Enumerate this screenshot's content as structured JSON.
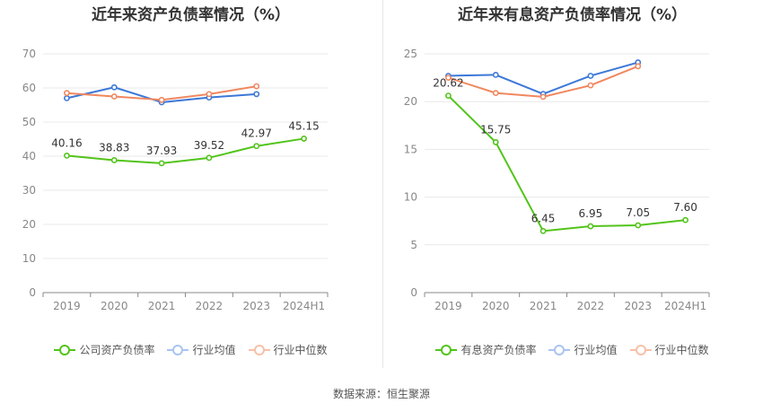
{
  "source_text": "数据来源：恒生聚源",
  "chart_data": [
    {
      "type": "line",
      "title": "近年来资产负债率情况（%）",
      "categories": [
        "2019",
        "2020",
        "2021",
        "2022",
        "2023",
        "2024H1"
      ],
      "ylim": [
        0,
        70
      ],
      "yticks": [
        0,
        10,
        20,
        30,
        40,
        50,
        60,
        70
      ],
      "grid": true,
      "legend_position": "bottom",
      "series": [
        {
          "name": "公司资产负债率",
          "color": "#52c41a",
          "values": [
            40.16,
            38.83,
            37.93,
            39.52,
            42.97,
            45.15
          ],
          "labels": [
            "40.16",
            "38.83",
            "37.93",
            "39.52",
            "42.97",
            "45.15"
          ]
        },
        {
          "name": "行业均值",
          "color": "#3c78d8",
          "values": [
            57.0,
            60.2,
            55.8,
            57.2,
            58.2,
            null
          ]
        },
        {
          "name": "行业中位数",
          "color": "#f08860",
          "values": [
            58.5,
            57.5,
            56.5,
            58.2,
            60.5,
            null
          ]
        }
      ]
    },
    {
      "type": "line",
      "title": "近年来有息资产负债率情况（%）",
      "categories": [
        "2019",
        "2020",
        "2021",
        "2022",
        "2023",
        "2024H1"
      ],
      "ylim": [
        0,
        25
      ],
      "yticks": [
        0,
        5,
        10,
        15,
        20,
        25
      ],
      "grid": true,
      "legend_position": "bottom",
      "series": [
        {
          "name": "有息资产负债率",
          "color": "#52c41a",
          "values": [
            20.62,
            15.75,
            6.45,
            6.95,
            7.05,
            7.6
          ],
          "labels": [
            "20.62",
            "15.75",
            "6.45",
            "6.95",
            "7.05",
            "7.60"
          ]
        },
        {
          "name": "行业均值",
          "color": "#3c78d8",
          "values": [
            22.7,
            22.8,
            20.8,
            22.7,
            24.1,
            null
          ]
        },
        {
          "name": "行业中位数",
          "color": "#f08860",
          "values": [
            22.5,
            20.9,
            20.5,
            21.7,
            23.7,
            null
          ]
        }
      ]
    }
  ]
}
